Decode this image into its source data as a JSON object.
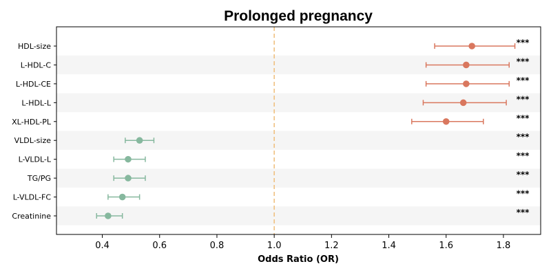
{
  "chart_data": {
    "type": "scatter",
    "style": "forest-plot",
    "title": "Prolonged pregnancy",
    "xlabel": "Odds Ratio (OR)",
    "ylabel": "",
    "xlim": [
      0.24,
      1.93
    ],
    "xticks": [
      "0.4",
      "0.6",
      "0.8",
      "1.0",
      "1.2",
      "1.4",
      "1.6",
      "1.8"
    ],
    "reference_line": 1.0,
    "reference_color": "#f0c080",
    "colors": {
      "increased": "#d9775e",
      "decreased": "#86b89e",
      "stripe": "#f5f5f5"
    },
    "grid": false,
    "rows": [
      {
        "label": "HDL-size",
        "or": 1.69,
        "lower": 1.56,
        "upper": 1.84,
        "sig": "***",
        "direction": "increased"
      },
      {
        "label": "L-HDL-C",
        "or": 1.67,
        "lower": 1.53,
        "upper": 1.82,
        "sig": "***",
        "direction": "increased"
      },
      {
        "label": "L-HDL-CE",
        "or": 1.67,
        "lower": 1.53,
        "upper": 1.82,
        "sig": "***",
        "direction": "increased"
      },
      {
        "label": "L-HDL-L",
        "or": 1.66,
        "lower": 1.52,
        "upper": 1.81,
        "sig": "***",
        "direction": "increased"
      },
      {
        "label": "XL-HDL-PL",
        "or": 1.6,
        "lower": 1.48,
        "upper": 1.73,
        "sig": "***",
        "direction": "increased"
      },
      {
        "label": "VLDL-size",
        "or": 0.53,
        "lower": 0.48,
        "upper": 0.58,
        "sig": "***",
        "direction": "decreased"
      },
      {
        "label": "L-VLDL-L",
        "or": 0.49,
        "lower": 0.44,
        "upper": 0.55,
        "sig": "***",
        "direction": "decreased"
      },
      {
        "label": "TG/PG",
        "or": 0.49,
        "lower": 0.44,
        "upper": 0.55,
        "sig": "***",
        "direction": "decreased"
      },
      {
        "label": "L-VLDL-FC",
        "or": 0.47,
        "lower": 0.42,
        "upper": 0.53,
        "sig": "***",
        "direction": "decreased"
      },
      {
        "label": "Creatinine",
        "or": 0.42,
        "lower": 0.38,
        "upper": 0.47,
        "sig": "***",
        "direction": "decreased"
      }
    ]
  }
}
